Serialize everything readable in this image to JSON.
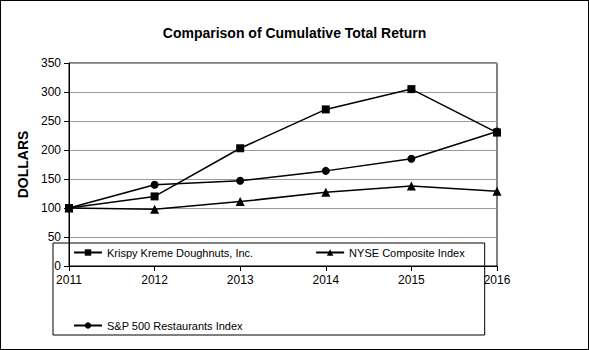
{
  "chart_data": {
    "type": "line",
    "title": "Comparison of Cumulative Total Return",
    "y_label": "DOLLARS",
    "categories": [
      "2011",
      "2012",
      "2013",
      "2014",
      "2015",
      "2016"
    ],
    "series": [
      {
        "name": "Krispy Kreme Doughnuts, Inc.",
        "color": "#000000",
        "marker": "square",
        "values": [
          100,
          120,
          203,
          270,
          305,
          230
        ]
      },
      {
        "name": "NYSE Composite Index",
        "color": "#000000",
        "marker": "triangle",
        "values": [
          100,
          98,
          111,
          127,
          138,
          129
        ]
      },
      {
        "name": "S&P 500 Restaurants Index",
        "color": "#000000",
        "marker": "circle",
        "values": [
          100,
          140,
          147,
          164,
          185,
          232
        ]
      }
    ],
    "ylim": [
      0,
      350
    ],
    "yticks": [
      0,
      50,
      100,
      150,
      200,
      250,
      300,
      350
    ],
    "grid": true,
    "legend": "bottom"
  }
}
